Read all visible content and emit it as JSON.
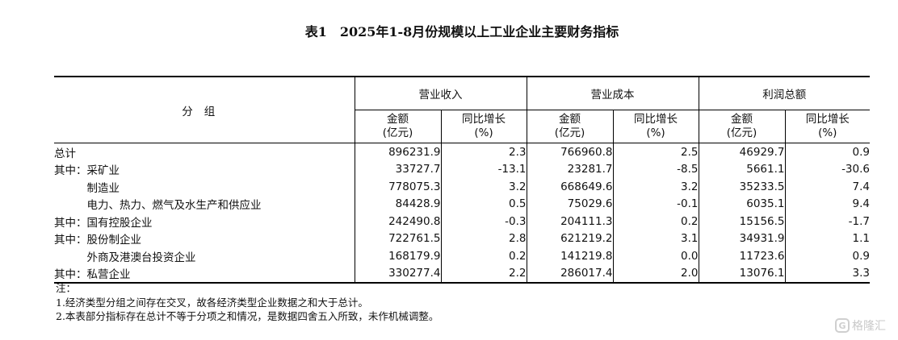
{
  "title": "表1　2025年1-8月份规模以上工业企业主要财务指标",
  "table": {
    "group_header": "分组",
    "metrics": [
      "营业收入",
      "营业成本",
      "利润总额"
    ],
    "amount_label": "金额",
    "amount_unit": "(亿元)",
    "growth_label": "同比增长",
    "growth_unit": "(%)",
    "rows": [
      {
        "category": "总计",
        "values": [
          "896231.9",
          "2.3",
          "766960.8",
          "2.5",
          "46929.7",
          "0.9"
        ]
      },
      {
        "category": "其中：采矿业",
        "values": [
          "33727.7",
          "-13.1",
          "23281.7",
          "-8.5",
          "5661.1",
          "-30.6"
        ]
      },
      {
        "category": "　　　制造业",
        "values": [
          "778075.3",
          "3.2",
          "668649.6",
          "3.2",
          "35233.5",
          "7.4"
        ]
      },
      {
        "category": "　　　电力、热力、燃气及水生产和供应业",
        "values": [
          "84428.9",
          "0.5",
          "75029.6",
          "-0.1",
          "6035.1",
          "9.4"
        ]
      },
      {
        "category": "其中：国有控股企业",
        "values": [
          "242490.8",
          "-0.3",
          "204111.3",
          "0.2",
          "15156.5",
          "-1.7"
        ]
      },
      {
        "category": "其中：股份制企业",
        "values": [
          "722761.5",
          "2.8",
          "621219.2",
          "3.1",
          "34931.9",
          "1.1"
        ]
      },
      {
        "category": "　　　外商及港澳台投资企业",
        "values": [
          "168179.9",
          "0.2",
          "141219.8",
          "0.0",
          "11723.6",
          "0.9"
        ]
      },
      {
        "category": "其中：私营企业",
        "values": [
          "330277.4",
          "2.2",
          "286017.4",
          "2.0",
          "13076.1",
          "3.3"
        ]
      }
    ]
  },
  "notes": [
    "注：",
    "1.经济类型分组之间存在交叉，故各经济类型企业数据之和大于总计。",
    "2.本表部分指标存在总计不等于分项之和情况，是数据四舍五入所致，未作机械调整。"
  ],
  "watermark": {
    "icon": "gelonghui-logo-icon",
    "text": "格隆汇"
  }
}
